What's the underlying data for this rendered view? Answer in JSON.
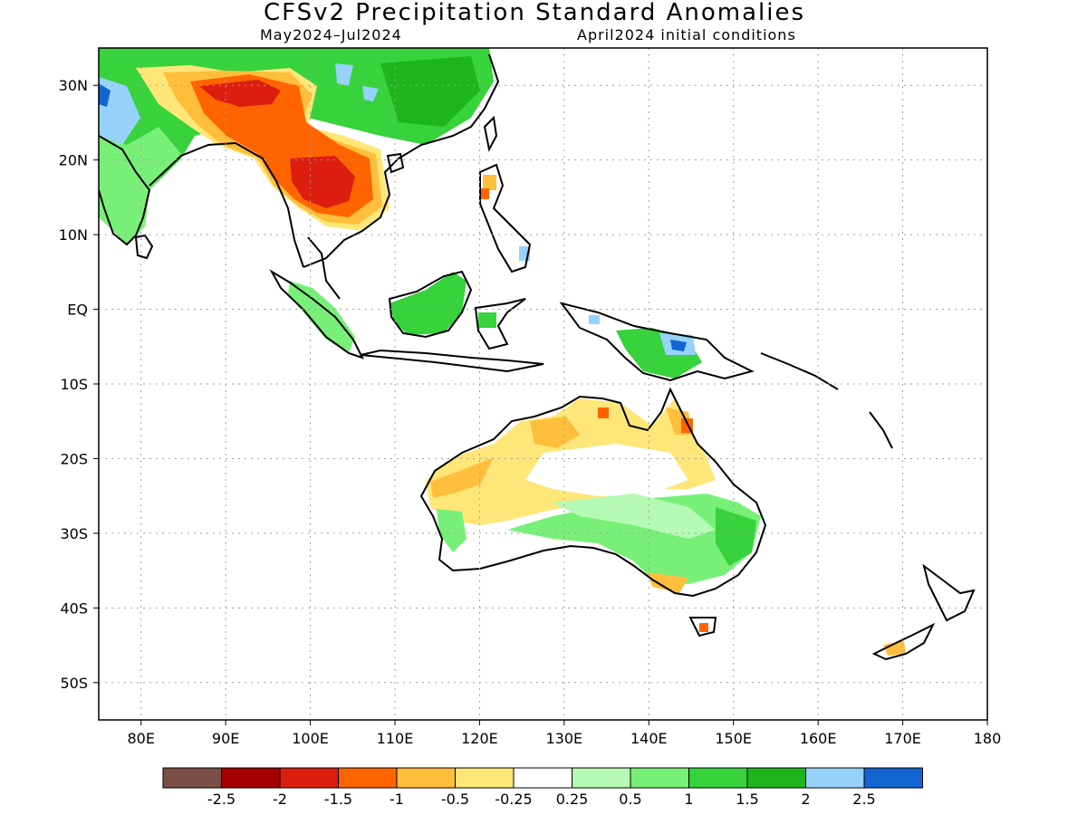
{
  "title": "CFSv2 Precipitation Standard Anomalies",
  "subtitle_left": "May2024–Jul2024",
  "subtitle_right": "April2024 initial conditions",
  "axes": {
    "lon_ticks": [
      80,
      90,
      100,
      110,
      120,
      130,
      140,
      150,
      160,
      170,
      180
    ],
    "lon_labels": [
      "80E",
      "90E",
      "100E",
      "110E",
      "120E",
      "130E",
      "140E",
      "150E",
      "160E",
      "170E",
      "180"
    ],
    "lat_ticks": [
      30,
      20,
      10,
      0,
      -10,
      -20,
      -30,
      -40,
      -50
    ],
    "lat_labels": [
      "30N",
      "20N",
      "10N",
      "EQ",
      "10S",
      "20S",
      "30S",
      "40S",
      "50S"
    ],
    "lon_range": [
      75,
      180
    ],
    "lat_range": [
      -55,
      35
    ],
    "grid": "dotted"
  },
  "colorbar": {
    "labels": [
      "-2.5",
      "-2",
      "-1.5",
      "-1",
      "-0.5",
      "-0.25",
      "0.25",
      "0.5",
      "1",
      "1.5",
      "2",
      "2.5"
    ],
    "colors": [
      "#7a5046",
      "#a50000",
      "#dc1e0f",
      "#ff6400",
      "#ffbe3c",
      "#ffe678",
      "#ffffff",
      "#b4fab4",
      "#78f078",
      "#37d23c",
      "#1eb41e",
      "#96d2fa",
      "#1464d2"
    ]
  },
  "colors": {
    "dry_strong": "#dc1e0f",
    "dry_moderate": "#ff6400",
    "dry_weak": "#ffbe3c",
    "dry_slight": "#ffe678",
    "wet_slight": "#b4fab4",
    "wet_weak": "#78f078",
    "wet_moderate": "#37d23c",
    "wet_strong": "#1eb41e",
    "very_wet": "#96d2fa",
    "extreme_wet": "#1464d2"
  }
}
